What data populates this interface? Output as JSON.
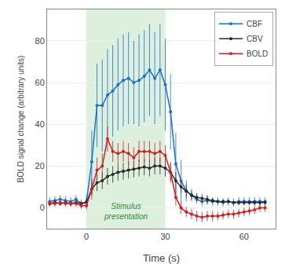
{
  "chart_data": {
    "type": "line",
    "xlabel": "Time (s)",
    "ylabel": "BOLD signal change (arbitrary units)",
    "x": [
      -14,
      -12,
      -10,
      -8,
      -6,
      -4,
      -2,
      0,
      2,
      4,
      6,
      8,
      10,
      12,
      14,
      16,
      18,
      20,
      22,
      24,
      26,
      28,
      30,
      32,
      34,
      36,
      38,
      40,
      42,
      44,
      46,
      48,
      50,
      52,
      54,
      56,
      58,
      60,
      62,
      64,
      66,
      68
    ],
    "series": [
      {
        "name": "CBF",
        "color": "#1a6fd4",
        "marker": "circle",
        "values": [
          3,
          3.5,
          4,
          3.5,
          3,
          4,
          2,
          3,
          22,
          49,
          49,
          54,
          56,
          59,
          61,
          62,
          60,
          61,
          63,
          66,
          62,
          66,
          59,
          46,
          21,
          13,
          8,
          6,
          4,
          3,
          3.5,
          3,
          3,
          2.5,
          3,
          2.5,
          3,
          3,
          3,
          3,
          3,
          3
        ],
        "error": [
          2,
          2,
          2,
          2,
          2,
          2,
          2,
          3,
          15,
          20,
          22,
          22,
          22,
          22,
          22,
          22,
          20,
          22,
          22,
          22,
          22,
          22,
          22,
          18,
          15,
          10,
          5,
          3,
          2,
          2,
          2,
          2,
          2,
          2,
          2,
          2,
          2,
          2,
          2,
          2,
          2,
          2
        ]
      },
      {
        "name": "CBV",
        "color": "#2a2a2a",
        "marker": "circle",
        "values": [
          2,
          2.5,
          2,
          2.5,
          2,
          2.5,
          2,
          2.5,
          9,
          12,
          13,
          15,
          16,
          17,
          17.5,
          18,
          18.5,
          19,
          19.5,
          19,
          20,
          20,
          19,
          17,
          13,
          10,
          8,
          6,
          5,
          4.5,
          4,
          3.5,
          3,
          3,
          3,
          2.5,
          2.5,
          2.5,
          2.5,
          2.5,
          2.5,
          2.5
        ],
        "error": [
          1,
          1,
          1,
          1,
          1,
          1,
          1,
          2,
          3,
          4,
          4,
          4,
          4,
          4,
          4,
          4,
          4,
          4,
          4,
          4,
          4,
          4,
          4,
          4,
          4,
          3,
          3,
          2,
          2,
          2,
          2,
          1,
          1,
          1,
          1,
          1,
          1,
          1,
          1,
          1,
          1,
          1
        ]
      },
      {
        "name": "BOLD",
        "color": "#cc2222",
        "marker": "circle",
        "values": [
          2,
          2,
          2.5,
          2,
          2,
          2,
          1,
          1,
          9,
          18,
          20,
          33,
          27,
          26,
          27,
          26,
          24,
          27,
          27,
          27,
          26,
          27,
          25,
          17,
          5,
          0,
          -2,
          -3,
          -4,
          -4.5,
          -4,
          -4,
          -4,
          -3.5,
          -3,
          -3,
          -2.5,
          -2,
          -1.5,
          -1,
          0,
          0
        ],
        "error": [
          1.5,
          1.5,
          1.5,
          1.5,
          1.5,
          1.5,
          1.5,
          2,
          5,
          6,
          6,
          6,
          5,
          5,
          5,
          5,
          5,
          5,
          5,
          5,
          5,
          5,
          5,
          5,
          4,
          3,
          2.5,
          2.5,
          2.5,
          2.5,
          2.5,
          2.5,
          2,
          2,
          2,
          2,
          2,
          2,
          2,
          2,
          2,
          2
        ]
      }
    ],
    "shaded_x": [
      0,
      30
    ],
    "annotations": [
      {
        "text": "Stimulus\npresentation",
        "x": 15,
        "y": -7,
        "color": "#3a8a3a"
      }
    ],
    "xlim": [
      -15,
      72
    ],
    "xticks": [
      0,
      30,
      60
    ],
    "ylim": [
      -10,
      95
    ],
    "yticks": [
      0,
      20,
      40,
      60,
      80
    ],
    "grid": "y",
    "legend": "upper right"
  }
}
